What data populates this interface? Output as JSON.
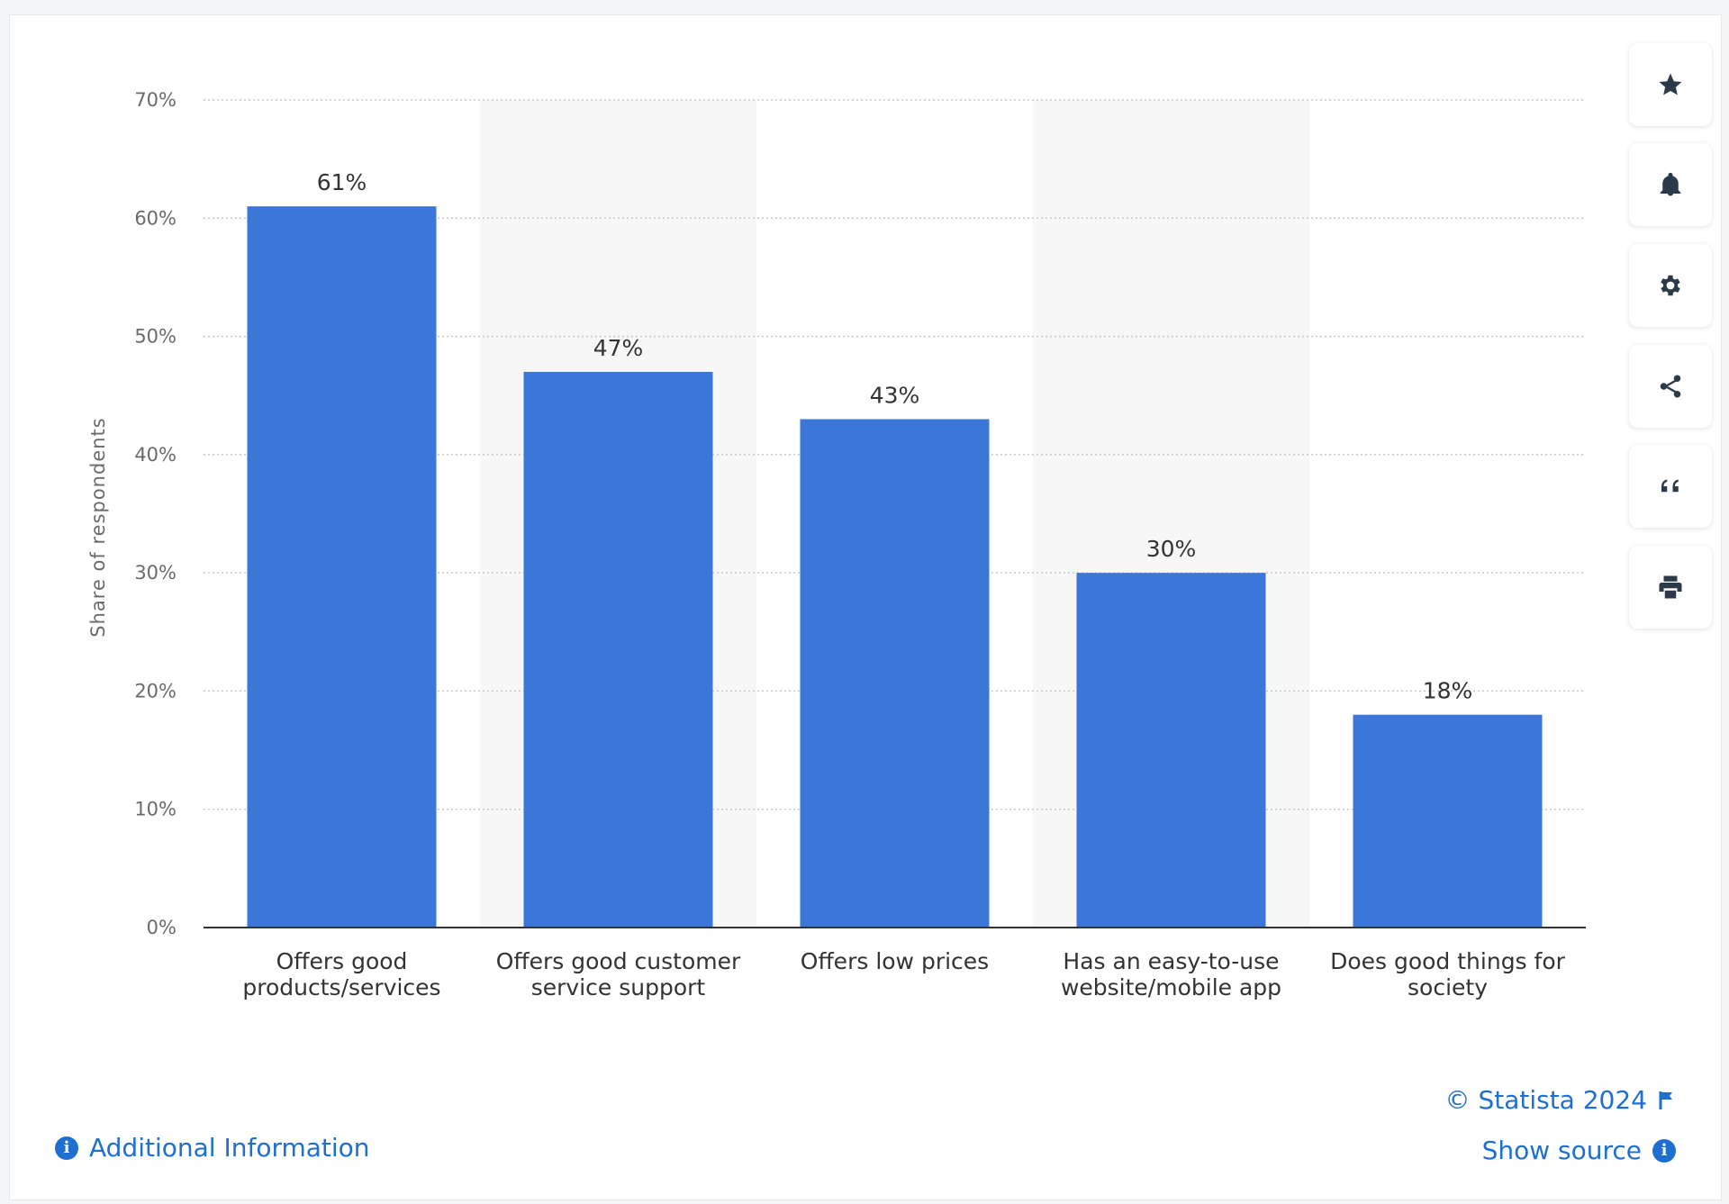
{
  "chart_data": {
    "type": "bar",
    "categories": [
      [
        "Offers good",
        "products/services"
      ],
      [
        "Offers good customer",
        "service support"
      ],
      [
        "Offers low prices"
      ],
      [
        "Has an easy-to-use",
        "website/mobile app"
      ],
      [
        "Does good things for",
        "society"
      ]
    ],
    "values": [
      61,
      47,
      43,
      30,
      18
    ],
    "value_labels": [
      "61%",
      "47%",
      "43%",
      "30%",
      "18%"
    ],
    "ylabel": "Share of respondents",
    "ylim": [
      0,
      70
    ],
    "yticks": [
      0,
      10,
      20,
      30,
      40,
      50,
      60,
      70
    ],
    "ytick_labels": [
      "0%",
      "10%",
      "20%",
      "30%",
      "40%",
      "50%",
      "60%",
      "70%"
    ],
    "grid": true,
    "colors": {
      "bar": "#3b76d9",
      "band": "#f7f7f7",
      "grid": "#c8c8c8"
    }
  },
  "toolbar": {
    "buttons": [
      "star-icon",
      "bell-icon",
      "gear-icon",
      "share-icon",
      "quote-icon",
      "print-icon"
    ]
  },
  "footer": {
    "copyright": "© Statista 2024",
    "show_source": "Show source",
    "additional_info": "Additional Information",
    "link_color": "#1f6fd1"
  }
}
